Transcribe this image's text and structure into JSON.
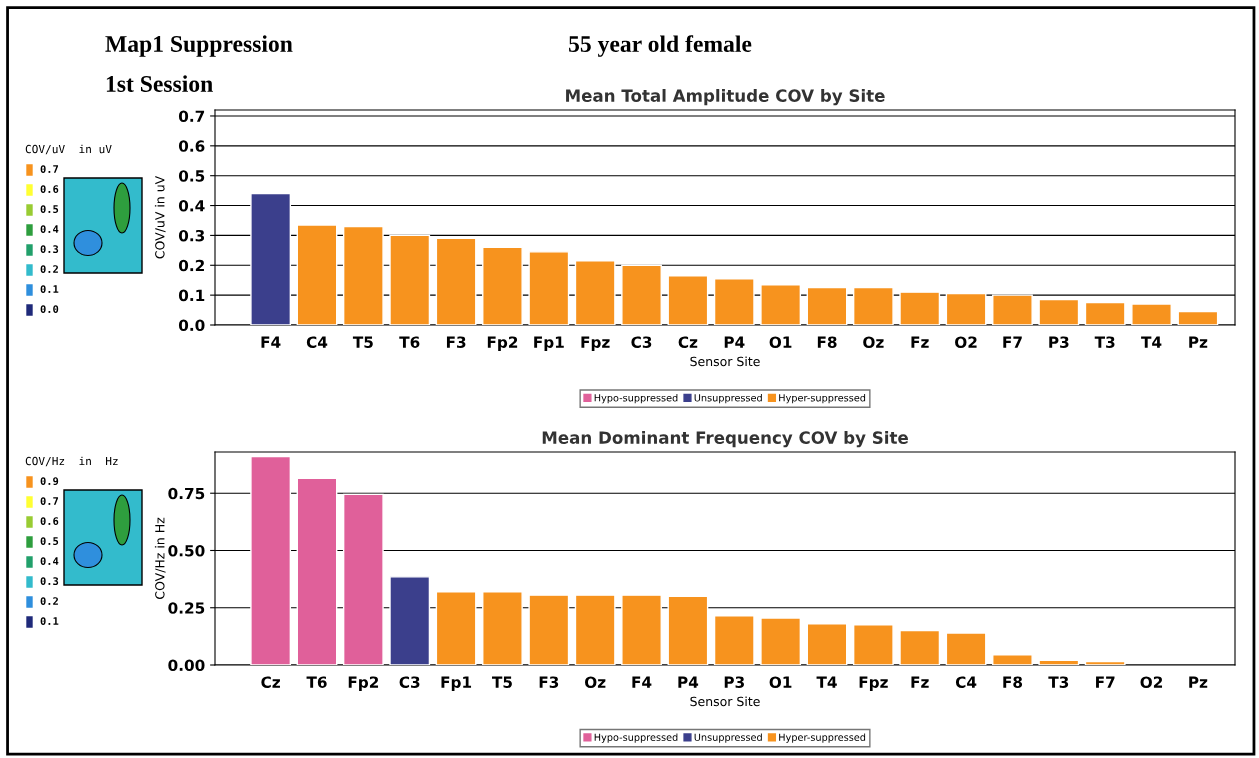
{
  "chart_data": [
    {
      "type": "bar",
      "title": "Mean Total Amplitude COV by Site",
      "xlabel": "Sensor Site",
      "ylabel": "COV/uV in uV",
      "annotations": [
        "Map1 Suppression",
        "1st Session",
        "55 year old female",
        "COV/uV  in uV",
        "0.7",
        "0.6",
        "0.5",
        "0.4",
        "0.3",
        "0.2",
        "0.1",
        "0.0"
      ],
      "categories": [
        "F4",
        "C4",
        "T5",
        "T6",
        "F3",
        "Fp2",
        "Fp1",
        "Fpz",
        "C3",
        "Cz",
        "P4",
        "O1",
        "F8",
        "Oz",
        "Fz",
        "O2",
        "F7",
        "P3",
        "T3",
        "T4",
        "Pz"
      ],
      "stacked": true,
      "series": [
        {
          "name": "Hypo-suppressed",
          "color": "#e0609a",
          "values": [
            null,
            null,
            null,
            null,
            null,
            null,
            null,
            null,
            null,
            null,
            null,
            null,
            null,
            null,
            null,
            null,
            null,
            null,
            null,
            null,
            null
          ]
        },
        {
          "name": "Unsuppressed",
          "color": "#3b3f8c",
          "values": [
            0.44,
            null,
            null,
            null,
            null,
            null,
            null,
            null,
            null,
            null,
            null,
            null,
            null,
            null,
            null,
            null,
            null,
            null,
            null,
            null,
            null
          ]
        },
        {
          "name": "Hyper-suppressed",
          "color": "#f7931e",
          "values": [
            null,
            0.335,
            0.33,
            0.3,
            0.29,
            0.26,
            0.245,
            0.215,
            0.2,
            0.165,
            0.155,
            0.135,
            0.125,
            0.125,
            0.11,
            0.105,
            0.1,
            0.085,
            0.075,
            0.07,
            0.045
          ]
        }
      ],
      "ylim": [
        0,
        0.72
      ],
      "yticks": [
        {
          "value": 0,
          "label": "0.0"
        },
        0.1,
        0.2,
        0.3,
        0.4,
        0.5,
        0.6,
        0.7
      ],
      "grid": "y",
      "legend": "bottom"
    },
    {
      "type": "bar",
      "title": "Mean Dominant Frequency COV by Site",
      "xlabel": "Sensor Site",
      "ylabel": "COV/Hz in Hz",
      "annotations": [
        "COV/Hz  in  Hz",
        "0.9",
        "0.7",
        "0.6",
        "0.5",
        "0.4",
        "0.3",
        "0.2",
        "0.1"
      ],
      "categories": [
        "Cz",
        "T6",
        "Fp2",
        "C3",
        "Fp1",
        "T5",
        "F3",
        "Oz",
        "F4",
        "P4",
        "P3",
        "O1",
        "T4",
        "Fpz",
        "Fz",
        "C4",
        "F8",
        "T3",
        "F7",
        "O2",
        "Pz"
      ],
      "stacked": true,
      "series": [
        {
          "name": "Hypo-suppressed",
          "color": "#e0609a",
          "values": [
            0.91,
            0.815,
            0.745,
            null,
            null,
            null,
            null,
            null,
            null,
            null,
            null,
            null,
            null,
            null,
            null,
            null,
            null,
            null,
            null,
            null,
            null
          ]
        },
        {
          "name": "Unsuppressed",
          "color": "#3b3f8c",
          "values": [
            null,
            null,
            null,
            0.385,
            null,
            null,
            null,
            null,
            null,
            null,
            null,
            null,
            null,
            null,
            null,
            null,
            null,
            null,
            null,
            null,
            null
          ]
        },
        {
          "name": "Hyper-suppressed",
          "color": "#f7931e",
          "values": [
            null,
            null,
            null,
            null,
            0.32,
            0.32,
            0.305,
            0.305,
            0.305,
            0.3,
            0.215,
            0.205,
            0.18,
            0.175,
            0.15,
            0.14,
            0.045,
            0.02,
            0.015,
            0,
            0
          ]
        }
      ],
      "ylim": [
        0,
        0.93
      ],
      "yticks": [
        {
          "value": 0,
          "label": "0.00"
        },
        {
          "value": 0.25,
          "label": "0.25"
        },
        {
          "value": 0.5,
          "label": "0.50"
        },
        {
          "value": 0.75,
          "label": "0.75"
        }
      ],
      "grid": "y",
      "legend": "bottom"
    }
  ]
}
